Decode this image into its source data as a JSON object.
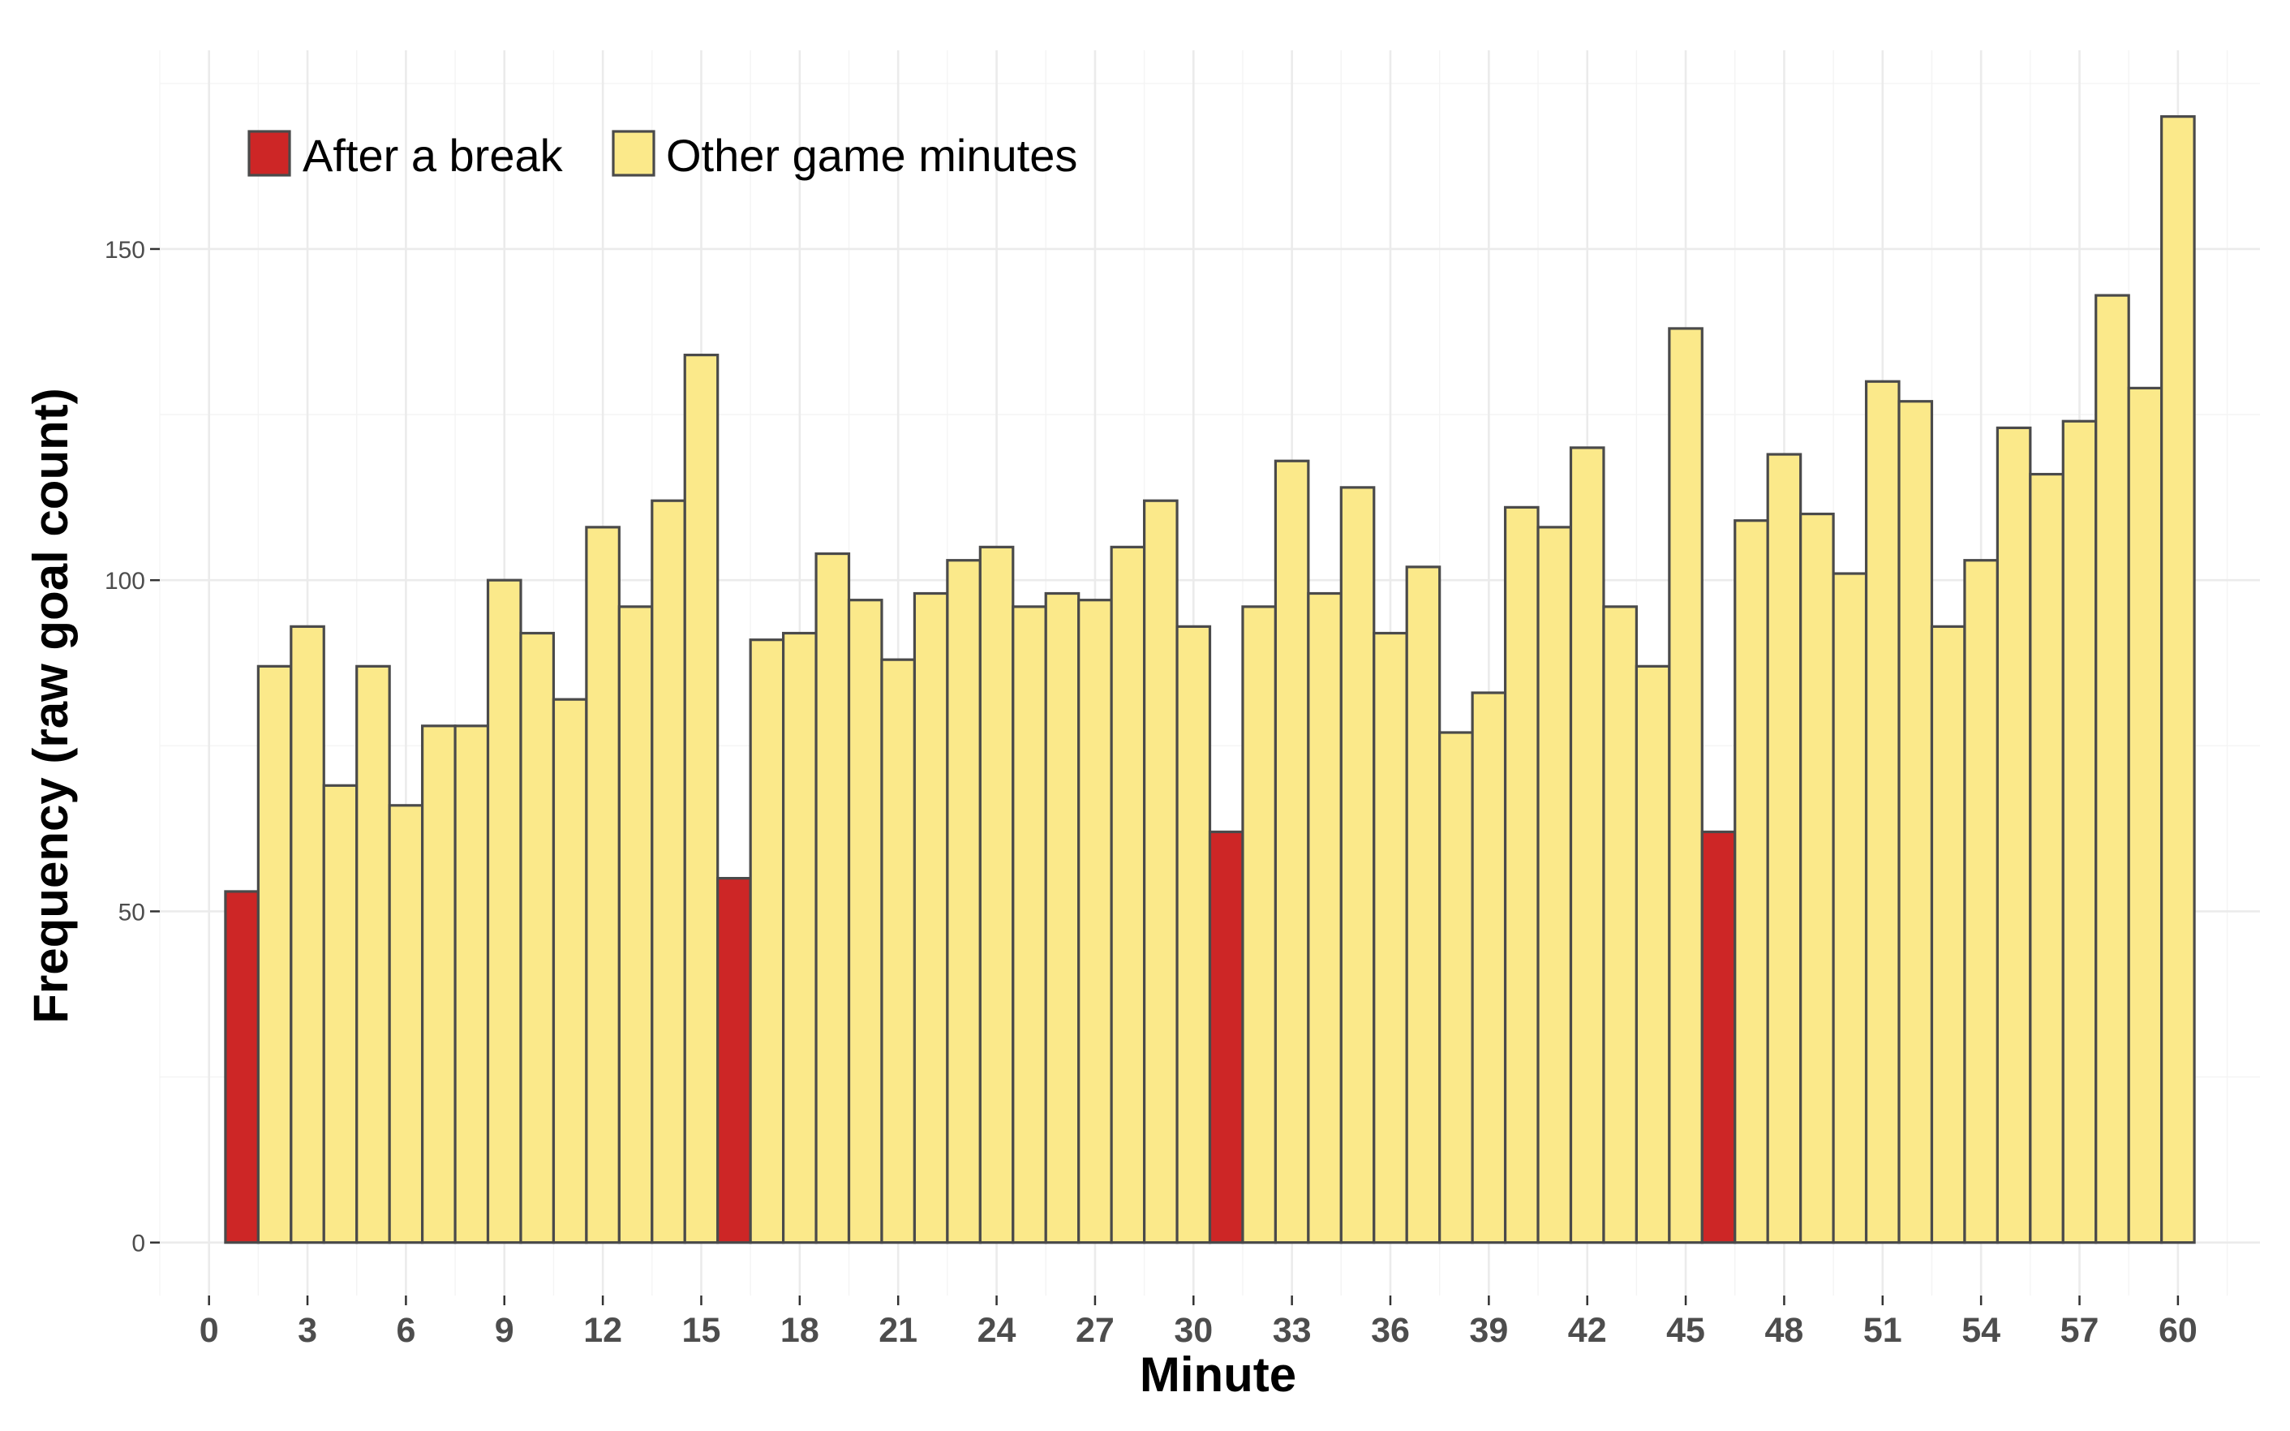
{
  "chart_data": {
    "type": "bar",
    "title": "",
    "xlabel": "Minute",
    "ylabel": "Frequency (raw goal count)",
    "x": [
      1,
      2,
      3,
      4,
      5,
      6,
      7,
      8,
      9,
      10,
      11,
      12,
      13,
      14,
      15,
      16,
      17,
      18,
      19,
      20,
      21,
      22,
      23,
      24,
      25,
      26,
      27,
      28,
      29,
      30,
      31,
      32,
      33,
      34,
      35,
      36,
      37,
      38,
      39,
      40,
      41,
      42,
      43,
      44,
      45,
      46,
      47,
      48,
      49,
      50,
      51,
      52,
      53,
      54,
      55,
      56,
      57,
      58,
      59,
      60
    ],
    "values": [
      53,
      87,
      93,
      69,
      87,
      66,
      78,
      78,
      100,
      92,
      82,
      108,
      96,
      112,
      134,
      55,
      91,
      92,
      104,
      97,
      88,
      98,
      103,
      105,
      96,
      98,
      97,
      105,
      112,
      93,
      62,
      96,
      118,
      98,
      114,
      92,
      102,
      77,
      83,
      111,
      108,
      120,
      96,
      87,
      138,
      62,
      109,
      119,
      110,
      101,
      130,
      127,
      93,
      103,
      123,
      116,
      124,
      143,
      129,
      170
    ],
    "groups": [
      "After a break",
      "Other game minutes",
      "Other game minutes",
      "Other game minutes",
      "Other game minutes",
      "Other game minutes",
      "Other game minutes",
      "Other game minutes",
      "Other game minutes",
      "Other game minutes",
      "Other game minutes",
      "Other game minutes",
      "Other game minutes",
      "Other game minutes",
      "Other game minutes",
      "After a break",
      "Other game minutes",
      "Other game minutes",
      "Other game minutes",
      "Other game minutes",
      "Other game minutes",
      "Other game minutes",
      "Other game minutes",
      "Other game minutes",
      "Other game minutes",
      "Other game minutes",
      "Other game minutes",
      "Other game minutes",
      "Other game minutes",
      "Other game minutes",
      "After a break",
      "Other game minutes",
      "Other game minutes",
      "Other game minutes",
      "Other game minutes",
      "Other game minutes",
      "Other game minutes",
      "Other game minutes",
      "Other game minutes",
      "Other game minutes",
      "Other game minutes",
      "Other game minutes",
      "Other game minutes",
      "Other game minutes",
      "Other game minutes",
      "After a break",
      "Other game minutes",
      "Other game minutes",
      "Other game minutes",
      "Other game minutes",
      "Other game minutes",
      "Other game minutes",
      "Other game minutes",
      "Other game minutes",
      "Other game minutes",
      "Other game minutes",
      "Other game minutes",
      "Other game minutes",
      "Other game minutes",
      "Other game minutes"
    ],
    "legend": [
      {
        "label": "After a break",
        "color": "#cd2626"
      },
      {
        "label": "Other game minutes",
        "color": "#fbe98a"
      }
    ],
    "legend_position": "top-left",
    "xlim": [
      -1.5,
      62.5
    ],
    "ylim": [
      -8,
      180
    ],
    "x_ticks": [
      0,
      3,
      6,
      9,
      12,
      15,
      18,
      21,
      24,
      27,
      30,
      33,
      36,
      39,
      42,
      45,
      48,
      51,
      54,
      57,
      60
    ],
    "x_tick_labels": [
      "0",
      "3",
      "6",
      "9",
      "12",
      "15",
      "18",
      "21",
      "24",
      "27",
      "30",
      "33",
      "36",
      "39",
      "42",
      "45",
      "48",
      "51",
      "54",
      "57",
      "60"
    ],
    "y_ticks": [
      0,
      50,
      100,
      150
    ],
    "y_tick_labels": [
      "0",
      "50",
      "100",
      "150"
    ],
    "grid": true
  }
}
